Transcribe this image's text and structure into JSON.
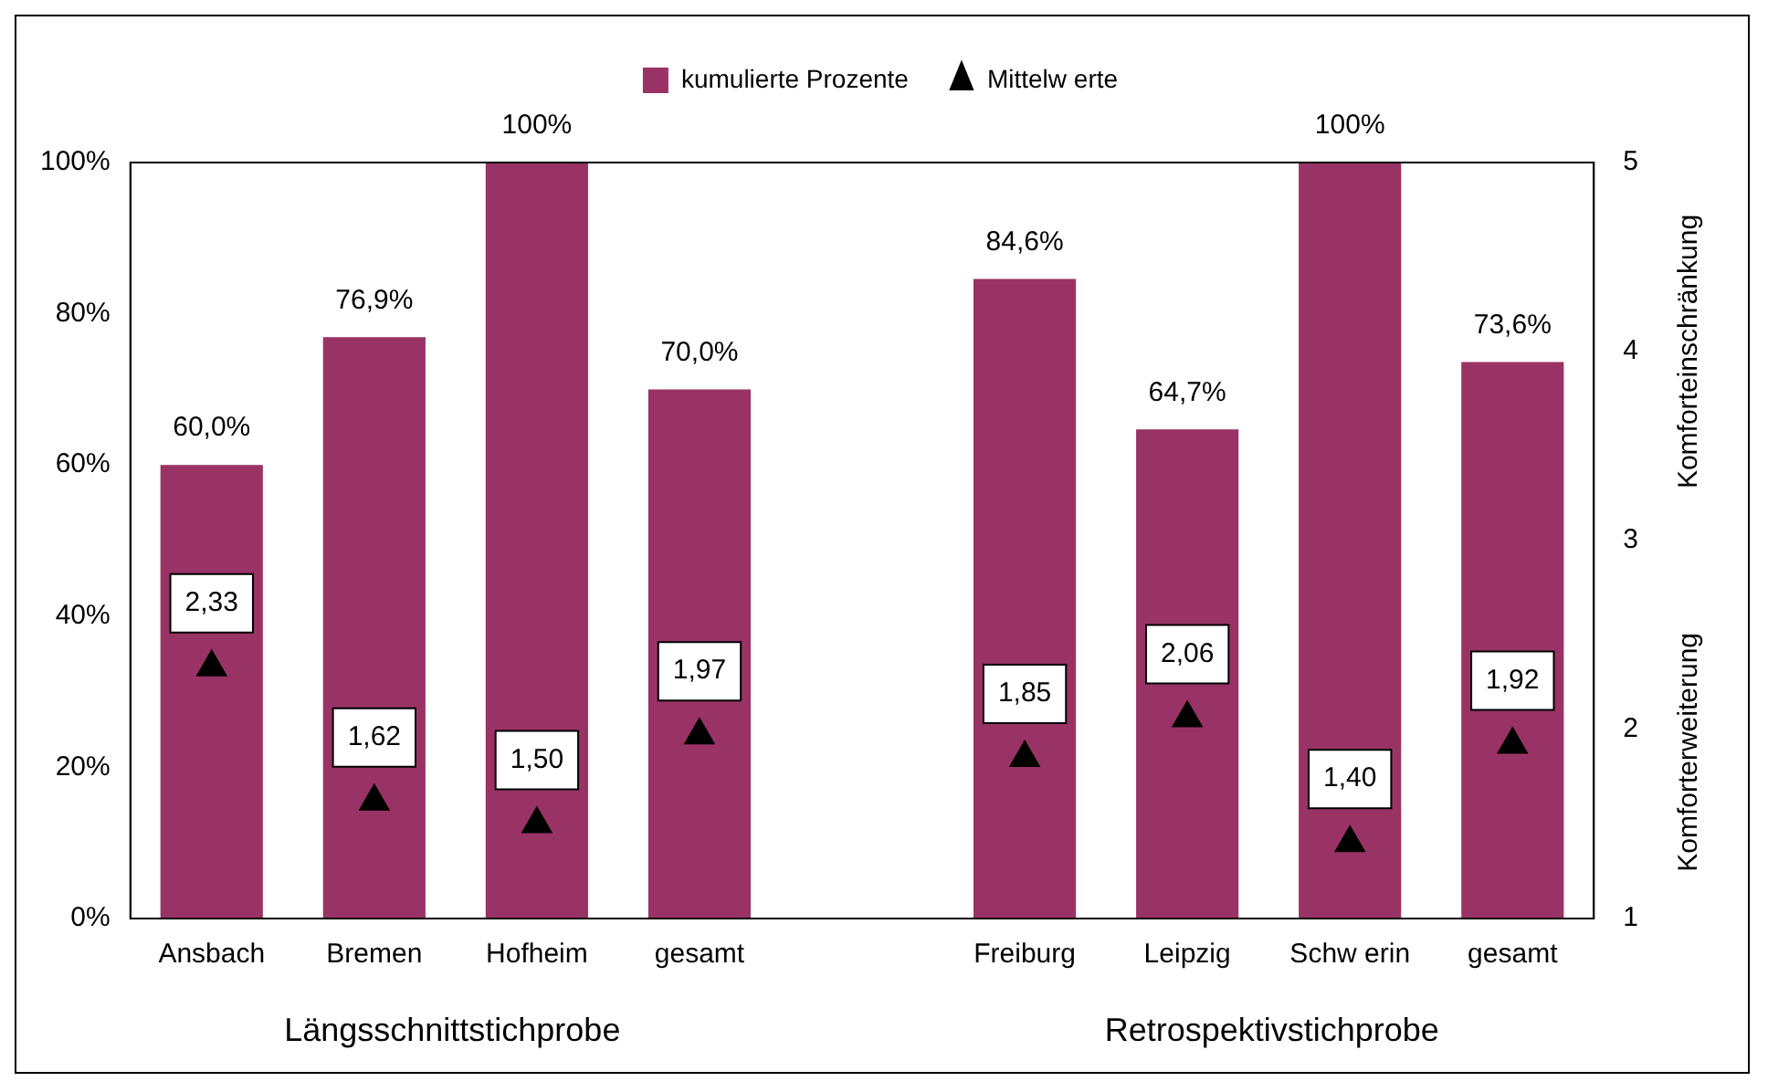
{
  "chart_data": {
    "type": "bar",
    "categories": [
      "Ansbach",
      "Bremen",
      "Hofheim",
      "gesamt",
      null,
      "Freiburg",
      "Leipzig",
      "Schw erin",
      "gesamt"
    ],
    "series": [
      {
        "name": "kumulierte Prozente",
        "color": "#993366",
        "values": [
          60.0,
          76.9,
          100,
          70.0,
          null,
          84.6,
          64.7,
          100,
          73.6
        ],
        "value_labels": [
          "60,0%",
          "76,9%",
          "100%",
          "70,0%",
          null,
          "84,6%",
          "64,7%",
          "100%",
          "73,6%"
        ]
      },
      {
        "name": "Mittelw erte",
        "type": "scatter",
        "axis": "y2",
        "marker": "triangle",
        "color": "#000000",
        "values": [
          2.33,
          1.62,
          1.5,
          1.97,
          null,
          1.85,
          2.06,
          1.4,
          1.92
        ],
        "value_labels": [
          "2,33",
          "1,62",
          "1,50",
          "1,97",
          null,
          "1,85",
          "2,06",
          "1,40",
          "1,92"
        ]
      }
    ],
    "ylim": [
      0,
      100
    ],
    "yticks": [
      {
        "value": 0,
        "label": "0%"
      },
      {
        "value": 20,
        "label": "20%"
      },
      {
        "value": 40,
        "label": "40%"
      },
      {
        "value": 60,
        "label": "60%"
      },
      {
        "value": 80,
        "label": "80%"
      },
      {
        "value": 100,
        "label": "100%"
      }
    ],
    "y2lim": [
      1,
      5
    ],
    "y2ticks": [
      1,
      2,
      3,
      4,
      5
    ],
    "y2label": "Komforteinschränkung",
    "annotations": [
      "Längsschnittstichprobe",
      "Retrospektivstichprobe",
      "Komforterweiterung"
    ],
    "legend": "top",
    "grid": false
  }
}
